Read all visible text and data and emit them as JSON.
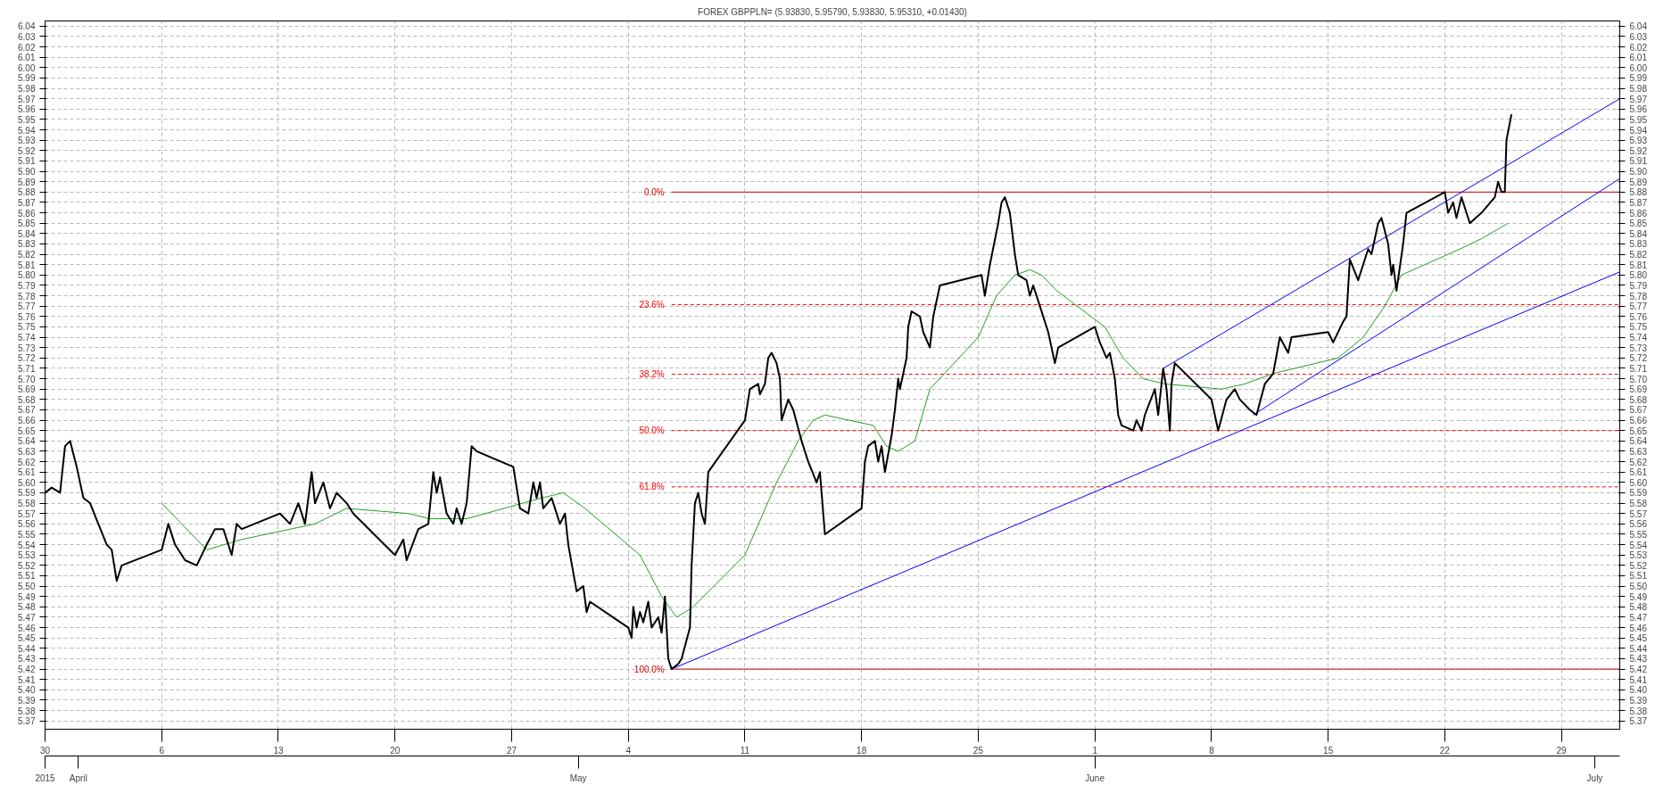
{
  "chart_data": {
    "type": "line",
    "title": "FOREX GBPPLN= (5.93830, 5.95790, 5.93830, 5.95310, +0.01430)",
    "xlim": [
      "2015-03-30",
      "2015-07-02T12:00"
    ],
    "xticks": [
      {
        "value": "2015-03-30",
        "label": "30"
      },
      {
        "value": "2015-04-06",
        "label": "6"
      },
      {
        "value": "2015-04-13",
        "label": "13"
      },
      {
        "value": "2015-04-20",
        "label": "20"
      },
      {
        "value": "2015-04-27",
        "label": "27"
      },
      {
        "value": "2015-05-04",
        "label": "4"
      },
      {
        "value": "2015-05-11",
        "label": "11"
      },
      {
        "value": "2015-05-18",
        "label": "18"
      },
      {
        "value": "2015-05-25",
        "label": "25"
      },
      {
        "value": "2015-06-01",
        "label": "1"
      },
      {
        "value": "2015-06-08",
        "label": "8"
      },
      {
        "value": "2015-06-15",
        "label": "15"
      },
      {
        "value": "2015-06-22",
        "label": "22"
      },
      {
        "value": "2015-06-29",
        "label": "29"
      }
    ],
    "x2lim": [
      "2015-03-30",
      "2015-07-02T12:00"
    ],
    "x2ticks": [
      {
        "value": "2015-03-30",
        "label": "2015"
      },
      {
        "value": "2015-04-01",
        "label": "April"
      },
      {
        "value": "2015-05-01",
        "label": "May"
      },
      {
        "value": "2015-06-01",
        "label": "June"
      },
      {
        "value": "2015-07-01",
        "label": "July"
      }
    ],
    "ylim": [
      5.362,
      6.045
    ],
    "yticks": [
      5.37,
      5.38,
      5.39,
      {
        "value": 5.4,
        "label": "5.40"
      },
      5.41,
      5.42,
      5.43,
      5.44,
      5.45,
      5.46,
      5.47,
      5.48,
      5.49,
      {
        "value": 5.5,
        "label": "5.50"
      },
      5.51,
      5.52,
      5.53,
      5.54,
      5.55,
      5.56,
      5.57,
      5.58,
      5.59,
      {
        "value": 5.6,
        "label": "5.60"
      },
      5.61,
      5.62,
      5.63,
      5.64,
      5.65,
      5.66,
      5.67,
      5.68,
      5.69,
      {
        "value": 5.7,
        "label": "5.70"
      },
      5.71,
      5.72,
      5.73,
      5.74,
      5.75,
      5.76,
      5.77,
      5.78,
      5.79,
      {
        "value": 5.8,
        "label": "5.80"
      },
      5.81,
      5.82,
      5.83,
      5.84,
      5.85,
      5.86,
      5.87,
      5.88,
      5.89,
      {
        "value": 5.9,
        "label": "5.90"
      },
      5.91,
      5.92,
      5.93,
      5.94,
      5.95,
      5.96,
      5.97,
      5.98,
      5.99,
      {
        "value": 6.0,
        "label": "6.00"
      },
      6.01,
      6.02,
      6.03,
      6.04
    ],
    "y2lim": [
      5.362,
      6.045
    ],
    "y2ticks": [
      5.37,
      5.38,
      5.39,
      {
        "value": 5.4,
        "label": "5.40"
      },
      5.41,
      5.42,
      5.43,
      5.44,
      5.45,
      5.46,
      5.47,
      5.48,
      5.49,
      {
        "value": 5.5,
        "label": "5.50"
      },
      5.51,
      5.52,
      5.53,
      5.54,
      5.55,
      5.56,
      5.57,
      5.58,
      5.59,
      {
        "value": 5.6,
        "label": "5.60"
      },
      5.61,
      5.62,
      5.63,
      5.64,
      5.65,
      5.66,
      5.67,
      5.68,
      5.69,
      {
        "value": 5.7,
        "label": "5.70"
      },
      5.71,
      5.72,
      5.73,
      5.74,
      5.75,
      5.76,
      5.77,
      5.78,
      5.79,
      {
        "value": 5.8,
        "label": "5.80"
      },
      5.81,
      5.82,
      5.83,
      5.84,
      5.85,
      5.86,
      5.87,
      5.88,
      5.89,
      {
        "value": 5.9,
        "label": "5.90"
      },
      5.91,
      5.92,
      5.93,
      5.94,
      5.95,
      5.96,
      5.97,
      5.98,
      5.99,
      {
        "value": 6.0,
        "label": "6.00"
      },
      6.01,
      6.02,
      6.03,
      6.04
    ],
    "grid": true,
    "line_style": "solid",
    "series": [
      {
        "color": "#000000",
        "x": [
          "2015-03-30T00:00",
          "2015-03-30T09:36",
          "2015-03-30T21:36",
          "2015-03-31T04:48",
          "2015-03-31T12:00",
          "2015-03-31T21:36",
          "2015-04-01T07:12",
          "2015-04-01T16:48",
          "2015-04-02T04:48",
          "2015-04-02T16:48",
          "2015-04-03T00:00",
          "2015-04-03T07:12",
          "2015-04-03T14:24",
          "2015-04-06T00:00",
          "2015-04-06T09:36",
          "2015-04-06T19:12",
          "2015-04-07T09:36",
          "2015-04-08T02:24",
          "2015-04-08T16:48",
          "2015-04-09T04:48",
          "2015-04-09T16:48",
          "2015-04-10T04:48",
          "2015-04-10T12:00",
          "2015-04-10T19:12",
          "2015-04-13T02:24",
          "2015-04-13T16:48",
          "2015-04-14T04:48",
          "2015-04-14T14:24",
          "2015-04-15T00:00",
          "2015-04-15T04:48",
          "2015-04-15T16:48",
          "2015-04-16T02:24",
          "2015-04-16T12:00",
          "2015-04-17T02:24",
          "2015-04-17T12:00",
          "2015-04-20T00:00",
          "2015-04-20T12:00",
          "2015-04-20T16:48",
          "2015-04-21T09:36",
          "2015-04-22T00:00",
          "2015-04-22T07:12",
          "2015-04-22T12:00",
          "2015-04-22T16:48",
          "2015-04-23T02:24",
          "2015-04-23T12:00",
          "2015-04-23T16:48",
          "2015-04-24T00:00",
          "2015-04-24T07:12",
          "2015-04-24T14:24",
          "2015-04-24T21:36",
          "2015-04-27T02:24",
          "2015-04-27T12:00",
          "2015-04-28T00:00",
          "2015-04-28T07:12",
          "2015-04-28T12:00",
          "2015-04-28T16:48",
          "2015-04-28T21:36",
          "2015-04-29T09:36",
          "2015-04-29T21:36",
          "2015-04-30T04:48",
          "2015-04-30T09:36",
          "2015-04-30T21:36",
          "2015-05-01T07:12",
          "2015-05-01T12:00",
          "2015-05-01T16:48",
          "2015-05-04T00:00",
          "2015-05-04T04:48",
          "2015-05-04T07:12",
          "2015-05-04T12:00",
          "2015-05-04T16:48",
          "2015-05-04T21:36",
          "2015-05-05T04:48",
          "2015-05-05T09:36",
          "2015-05-05T19:12",
          "2015-05-06T00:00",
          "2015-05-06T04:48",
          "2015-05-06T09:36",
          "2015-05-06T14:24",
          "2015-05-07T00:00",
          "2015-05-07T04:48",
          "2015-05-07T16:48",
          "2015-05-07T19:12",
          "2015-05-08T00:00",
          "2015-05-08T04:48",
          "2015-05-08T09:36",
          "2015-05-08T14:24",
          "2015-05-08T19:12",
          "2015-05-11T00:00",
          "2015-05-11T07:12",
          "2015-05-11T19:12",
          "2015-05-11T21:36",
          "2015-05-12T04:48",
          "2015-05-12T09:36",
          "2015-05-12T14:24",
          "2015-05-12T21:36",
          "2015-05-13T02:24",
          "2015-05-13T04:48",
          "2015-05-13T14:24",
          "2015-05-13T21:36",
          "2015-05-14T09:36",
          "2015-05-14T19:12",
          "2015-05-15T07:12",
          "2015-05-15T12:00",
          "2015-05-15T14:24",
          "2015-05-15T19:12",
          "2015-05-18T00:00",
          "2015-05-18T04:48",
          "2015-05-18T09:36",
          "2015-05-18T19:12",
          "2015-05-19T00:00",
          "2015-05-19T04:48",
          "2015-05-19T09:36",
          "2015-05-19T19:12",
          "2015-05-20T00:00",
          "2015-05-20T04:48",
          "2015-05-20T07:12",
          "2015-05-20T12:00",
          "2015-05-20T16:48",
          "2015-05-20T19:12",
          "2015-05-21T00:00",
          "2015-05-21T12:00",
          "2015-05-21T16:48",
          "2015-05-22T02:24",
          "2015-05-22T07:12",
          "2015-05-22T16:48",
          "2015-05-25T04:48",
          "2015-05-25T09:36",
          "2015-05-25T16:48",
          "2015-05-26T04:48",
          "2015-05-26T09:36",
          "2015-05-26T14:24",
          "2015-05-26T21:36",
          "2015-05-27T04:48",
          "2015-05-27T09:36",
          "2015-05-27T21:36",
          "2015-05-28T02:24",
          "2015-05-28T07:12",
          "2015-05-28T14:24",
          "2015-05-29T00:00",
          "2015-05-29T04:48",
          "2015-05-29T14:24",
          "2015-05-29T19:12",
          "2015-06-01T00:00",
          "2015-06-01T07:12",
          "2015-06-01T16:48",
          "2015-06-01T21:36",
          "2015-06-02T04:48",
          "2015-06-02T09:36",
          "2015-06-02T14:24",
          "2015-06-03T07:12",
          "2015-06-03T12:00",
          "2015-06-03T19:12",
          "2015-06-04T00:00",
          "2015-06-04T14:24",
          "2015-06-04T19:12",
          "2015-06-05T02:24",
          "2015-06-05T07:12",
          "2015-06-05T12:00",
          "2015-06-05T14:24",
          "2015-06-05T19:12",
          "2015-06-08T00:00",
          "2015-06-08T09:36",
          "2015-06-08T21:36",
          "2015-06-09T09:36",
          "2015-06-09T16:48",
          "2015-06-10T07:12",
          "2015-06-10T16:48",
          "2015-06-11T04:48",
          "2015-06-11T16:48",
          "2015-06-12T02:24",
          "2015-06-12T14:24",
          "2015-06-12T19:12",
          "2015-06-15T00:00",
          "2015-06-15T07:12",
          "2015-06-15T21:36",
          "2015-06-16T02:24",
          "2015-06-16T07:12",
          "2015-06-16T19:12",
          "2015-06-17T09:36",
          "2015-06-17T14:24",
          "2015-06-18T00:00",
          "2015-06-18T04:48",
          "2015-06-18T14:24",
          "2015-06-18T19:12",
          "2015-06-18T21:36",
          "2015-06-19T02:24",
          "2015-06-19T12:00",
          "2015-06-19T16:48",
          "2015-06-22T00:00",
          "2015-06-22T04:48",
          "2015-06-22T12:00",
          "2015-06-22T16:48",
          "2015-06-23T00:00",
          "2015-06-23T07:12",
          "2015-06-23T12:00",
          "2015-06-24T04:48",
          "2015-06-25T00:00",
          "2015-06-25T04:48",
          "2015-06-25T09:36",
          "2015-06-25T14:24",
          "2015-06-25T16:48",
          "2015-06-26T00:00"
        ],
        "values": [
          5.59,
          5.595,
          5.59,
          5.635,
          5.64,
          5.615,
          5.585,
          5.58,
          5.56,
          5.54,
          5.535,
          5.505,
          5.52,
          5.535,
          5.56,
          5.54,
          5.525,
          5.52,
          5.54,
          5.555,
          5.555,
          5.53,
          5.56,
          5.555,
          5.57,
          5.56,
          5.58,
          5.56,
          5.61,
          5.58,
          5.6,
          5.575,
          5.59,
          5.58,
          5.57,
          5.53,
          5.545,
          5.525,
          5.555,
          5.56,
          5.61,
          5.59,
          5.605,
          5.57,
          5.56,
          5.575,
          5.56,
          5.58,
          5.635,
          5.63,
          5.615,
          5.575,
          5.57,
          5.6,
          5.585,
          5.6,
          5.575,
          5.585,
          5.56,
          5.57,
          5.54,
          5.495,
          5.5,
          5.475,
          5.485,
          5.46,
          5.45,
          5.48,
          5.46,
          5.475,
          5.465,
          5.485,
          5.46,
          5.47,
          5.455,
          5.49,
          5.43,
          5.42,
          5.425,
          5.43,
          5.46,
          5.52,
          5.58,
          5.59,
          5.57,
          5.56,
          5.61,
          5.66,
          5.69,
          5.695,
          5.685,
          5.695,
          5.72,
          5.725,
          5.715,
          5.7,
          5.66,
          5.68,
          5.67,
          5.64,
          5.62,
          5.6,
          5.61,
          5.59,
          5.55,
          5.575,
          5.62,
          5.635,
          5.64,
          5.62,
          5.635,
          5.61,
          5.645,
          5.67,
          5.7,
          5.69,
          5.705,
          5.72,
          5.75,
          5.765,
          5.76,
          5.745,
          5.73,
          5.76,
          5.79,
          5.8,
          5.78,
          5.81,
          5.85,
          5.87,
          5.875,
          5.86,
          5.82,
          5.8,
          5.795,
          5.78,
          5.79,
          5.775,
          5.755,
          5.745,
          5.715,
          5.73,
          5.75,
          5.735,
          5.72,
          5.725,
          5.7,
          5.665,
          5.655,
          5.65,
          5.66,
          5.65,
          5.665,
          5.69,
          5.665,
          5.71,
          5.69,
          5.65,
          5.695,
          5.715,
          5.68,
          5.65,
          5.68,
          5.69,
          5.68,
          5.67,
          5.665,
          5.695,
          5.705,
          5.74,
          5.725,
          5.74,
          5.745,
          5.735,
          5.755,
          5.76,
          5.815,
          5.795,
          5.825,
          5.82,
          5.85,
          5.855,
          5.83,
          5.8,
          5.81,
          5.785,
          5.83,
          5.86,
          5.88,
          5.86,
          5.87,
          5.855,
          5.875,
          5.86,
          5.85,
          5.86,
          5.875,
          5.89,
          5.88,
          5.88,
          5.93,
          5.955
        ]
      },
      {
        "color": "#22a022",
        "x": [
          "2015-04-06T00:00",
          "2015-04-08T16:48",
          "2015-04-10T19:12",
          "2015-04-15T04:48",
          "2015-04-17T02:24",
          "2015-04-20T19:12",
          "2015-04-22T02:24",
          "2015-04-24T07:12",
          "2015-04-28T19:12",
          "2015-04-30T02:24",
          "2015-05-01T09:36",
          "2015-05-04T16:48",
          "2015-05-06T00:00",
          "2015-05-06T21:36",
          "2015-05-07T21:36",
          "2015-05-11T00:00",
          "2015-05-12T21:36",
          "2015-05-14T04:48",
          "2015-05-15T02:24",
          "2015-05-15T19:12",
          "2015-05-18T16:48",
          "2015-05-19T12:00",
          "2015-05-20T04:48",
          "2015-05-21T04:48",
          "2015-05-22T02:24",
          "2015-05-25T00:00",
          "2015-05-26T02:24",
          "2015-05-27T04:48",
          "2015-05-28T02:24",
          "2015-05-28T19:12",
          "2015-05-29T16:48",
          "2015-06-01T14:24",
          "2015-06-02T16:48",
          "2015-06-03T21:36",
          "2015-06-05T04:48",
          "2015-06-08T14:24",
          "2015-06-10T00:00",
          "2015-06-11T16:48",
          "2015-06-15T14:24",
          "2015-06-17T02:24",
          "2015-06-18T09:36",
          "2015-06-19T09:36",
          "2015-06-22T21:36",
          "2015-06-24T04:48",
          "2015-06-25T19:12"
        ],
        "values": [
          5.58,
          5.535,
          5.545,
          5.56,
          5.575,
          5.57,
          5.565,
          5.565,
          5.585,
          5.59,
          5.575,
          5.53,
          5.49,
          5.47,
          5.48,
          5.53,
          5.6,
          5.64,
          5.66,
          5.665,
          5.655,
          5.635,
          5.63,
          5.64,
          5.69,
          5.74,
          5.78,
          5.8,
          5.805,
          5.8,
          5.785,
          5.75,
          5.72,
          5.7,
          5.695,
          5.69,
          5.695,
          5.705,
          5.72,
          5.74,
          5.77,
          5.8,
          5.825,
          5.835,
          5.85
        ]
      },
      {
        "color": "#0000ff",
        "x": [
          "2015-05-06T14:24",
          "2015-07-02T12:00"
        ],
        "values": [
          5.42,
          5.803
        ]
      },
      {
        "color": "#0000ff",
        "x": [
          "2015-06-05T02:24",
          "2015-07-02T12:00"
        ],
        "values": [
          5.71,
          5.97
        ]
      },
      {
        "color": "#0000ff",
        "x": [
          "2015-06-10T12:00",
          "2015-07-02T12:00"
        ],
        "values": [
          5.665,
          5.893
        ]
      }
    ],
    "ref_lines": [
      {
        "axis": "y",
        "value": 5.88,
        "color": "#d00000",
        "line_style": "solid"
      },
      {
        "axis": "y",
        "value": 5.7714,
        "color": "#ff0000",
        "line_style": "dashed"
      },
      {
        "axis": "y",
        "value": 5.7043,
        "color": "#ff0000",
        "line_style": "dashed"
      },
      {
        "axis": "y",
        "value": 5.65,
        "color": "#ff0000",
        "line_style": "dashed"
      },
      {
        "axis": "y",
        "value": 5.5957,
        "color": "#ff0000",
        "line_style": "dashed"
      },
      {
        "axis": "y",
        "value": 5.42,
        "color": "#d00000",
        "line_style": "solid"
      }
    ],
    "annotations": [
      "0.0%",
      "23.6%",
      "38.2%",
      "50.0%",
      "61.8%",
      "100.0%"
    ]
  }
}
